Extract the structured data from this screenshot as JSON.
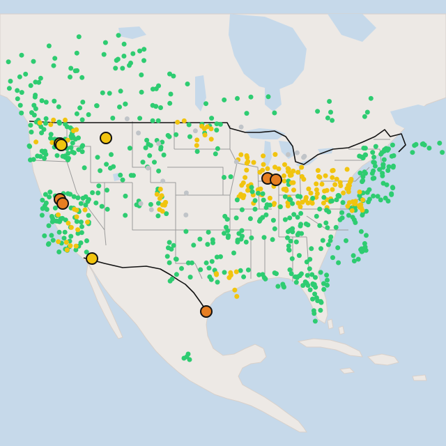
{
  "map": {
    "colors": {
      "ocean": "#c6d9ea",
      "land": "#ede9e5",
      "land_border": "#d8d0ca",
      "state_border": "#9a9a9a",
      "national_border": "#111111",
      "lakes": "#c6d9ea",
      "good": "#2ecc71",
      "moderate": "#f1c40f",
      "unhealthy_sensitive": "#e67e22",
      "no_data": "#c0c4c8",
      "marker_outline": "#111111"
    },
    "legend": []
  }
}
